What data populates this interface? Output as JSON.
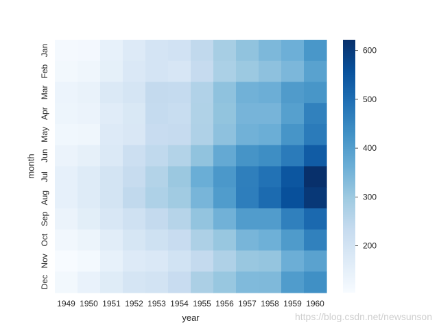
{
  "chart_data": {
    "type": "heatmap",
    "x_categories": [
      "1949",
      "1950",
      "1951",
      "1952",
      "1953",
      "1954",
      "1955",
      "1956",
      "1957",
      "1958",
      "1959",
      "1960"
    ],
    "y_categories": [
      "Jan",
      "Feb",
      "Mar",
      "Apr",
      "May",
      "Jun",
      "Jul",
      "Aug",
      "Sep",
      "Oct",
      "Nov",
      "Dec"
    ],
    "y_tick_labels_shown": [
      "Jan",
      "Feb",
      "Mar",
      "Apr",
      "May",
      "Jun",
      "Jul",
      "Aug",
      "Sep",
      "Oct",
      "Nov",
      "Dec"
    ],
    "xlabel": "year",
    "ylabel": "month",
    "values": [
      [
        112,
        115,
        145,
        171,
        196,
        204,
        242,
        284,
        315,
        340,
        360,
        417
      ],
      [
        118,
        126,
        150,
        180,
        196,
        188,
        233,
        277,
        301,
        318,
        342,
        391
      ],
      [
        132,
        141,
        178,
        193,
        236,
        235,
        267,
        317,
        356,
        362,
        406,
        419
      ],
      [
        129,
        135,
        163,
        181,
        235,
        227,
        269,
        313,
        348,
        348,
        396,
        461
      ],
      [
        121,
        125,
        172,
        183,
        229,
        234,
        270,
        318,
        355,
        363,
        420,
        472
      ],
      [
        135,
        149,
        178,
        218,
        243,
        264,
        315,
        374,
        422,
        435,
        472,
        535
      ],
      [
        148,
        170,
        199,
        230,
        264,
        302,
        364,
        413,
        465,
        491,
        548,
        622
      ],
      [
        148,
        170,
        199,
        242,
        272,
        293,
        347,
        405,
        467,
        505,
        559,
        606
      ],
      [
        136,
        158,
        184,
        209,
        237,
        259,
        312,
        355,
        404,
        404,
        463,
        508
      ],
      [
        119,
        133,
        162,
        191,
        211,
        229,
        274,
        306,
        347,
        359,
        407,
        461
      ],
      [
        104,
        114,
        146,
        172,
        180,
        203,
        237,
        271,
        305,
        310,
        362,
        390
      ],
      [
        118,
        140,
        166,
        194,
        201,
        229,
        278,
        306,
        336,
        337,
        405,
        432
      ]
    ],
    "colorbar": {
      "colormap": "Blues",
      "vmin": 104,
      "vmax": 622,
      "ticks": [
        200,
        300,
        400,
        500,
        600
      ]
    },
    "grid": false,
    "legend": "colorbar-right"
  },
  "watermark": "https://blog.csdn.net/newsunson"
}
